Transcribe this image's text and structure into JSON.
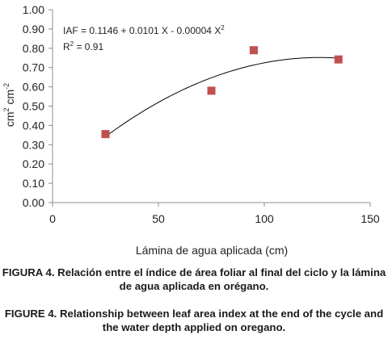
{
  "chart_data": {
    "type": "scatter",
    "title": "",
    "xlabel": "Lámina de agua aplicada (cm)",
    "ylabel_base": "cm",
    "ylabel_sup1": "2",
    "ylabel_mid": " cm",
    "ylabel_sup2": "-2",
    "xlim": [
      0,
      150
    ],
    "ylim": [
      0,
      1.0
    ],
    "x_ticks": [
      "0",
      "50",
      "100",
      "150"
    ],
    "y_ticks": [
      "0.00",
      "0.10",
      "0.20",
      "0.30",
      "0.40",
      "0.50",
      "0.60",
      "0.70",
      "0.80",
      "0.90",
      "1.00"
    ],
    "grid": false,
    "legend": "none",
    "marker_color": "#c0504d",
    "trendline_color": "#000000",
    "series": [
      {
        "x": [
          25,
          75,
          95,
          135
        ],
        "y": [
          0.355,
          0.58,
          0.79,
          0.742
        ]
      }
    ],
    "trendline": {
      "type": "polynomial",
      "coefficients": [
        0.1146,
        0.0101,
        -4e-05
      ],
      "x_range": [
        25,
        135
      ]
    },
    "annotations": {
      "equation_prefix": "IAF = 0.1146 + 0.0101 X - 0.00004 X",
      "equation_sup": "2",
      "r2_prefix": "R",
      "r2_sup": "2",
      "r2_value": " = 0.91"
    }
  },
  "captions": {
    "spanish": "FIGURA 4. Relación entre el índice de área foliar al final del ciclo y la lámina de agua aplicada en orégano.",
    "english": "FIGURE 4. Relationship between leaf area index at the end of the cycle and the water depth applied on oregano."
  }
}
